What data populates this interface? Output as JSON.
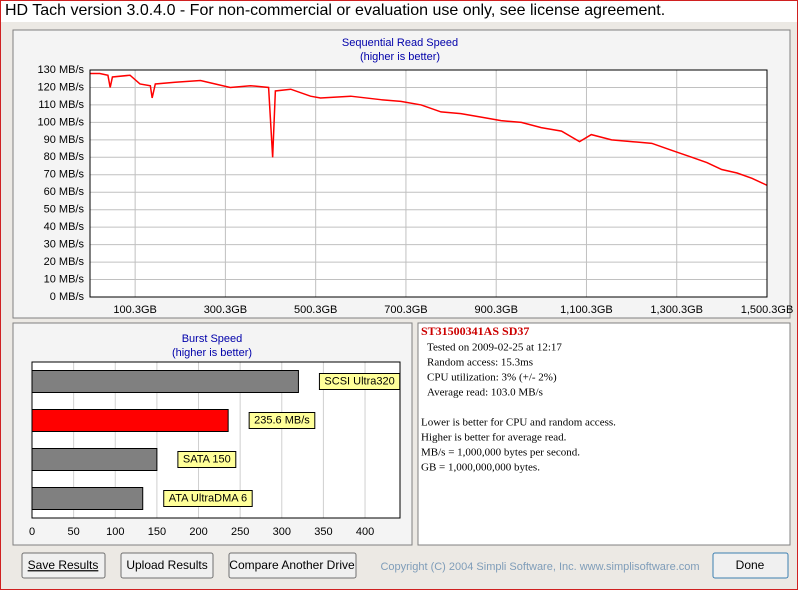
{
  "window_title": "HD Tach version 3.0.4.0  - For non-commercial or evaluation use only, see license agreement.",
  "chart_data": [
    {
      "type": "line",
      "title": "Sequential Read Speed",
      "subtitle": "(higher is better)",
      "color": "#ff0000",
      "x": [
        0.3,
        22,
        40,
        45,
        50,
        89,
        111,
        134,
        138,
        145,
        189,
        245,
        278,
        311,
        356,
        396,
        405,
        411,
        445,
        489,
        511,
        578,
        645,
        689,
        734,
        778,
        822,
        867,
        911,
        956,
        1000,
        1045,
        1085,
        1111,
        1156,
        1200,
        1245,
        1289,
        1334,
        1367,
        1400,
        1434,
        1467,
        1500
      ],
      "values": [
        128,
        128,
        127,
        120,
        126,
        127,
        122,
        121,
        114,
        122,
        123,
        124,
        122,
        120,
        121,
        120,
        80,
        118,
        119,
        115,
        114,
        115,
        113,
        112,
        110,
        106,
        105,
        103,
        101,
        100,
        97,
        95,
        89,
        93,
        90,
        89,
        88,
        84,
        80,
        77,
        73,
        71,
        68,
        64
      ],
      "xlim": [
        0.3,
        1500.3
      ],
      "xticks": [
        {
          "value": 100.3,
          "label": "100.3GB"
        },
        {
          "value": 300.3,
          "label": "300.3GB"
        },
        {
          "value": 500.3,
          "label": "500.3GB"
        },
        {
          "value": 700.3,
          "label": "700.3GB"
        },
        {
          "value": 900.3,
          "label": "900.3GB"
        },
        {
          "value": 1100.3,
          "label": "1,100.3GB"
        },
        {
          "value": 1300.3,
          "label": "1,300.3GB"
        },
        {
          "value": 1500.3,
          "label": "1,500.3GB"
        }
      ],
      "ylim": [
        0,
        130
      ],
      "yticks": [
        {
          "value": 0,
          "label": "0 MB/s"
        },
        {
          "value": 10,
          "label": "10 MB/s"
        },
        {
          "value": 20,
          "label": "20 MB/s"
        },
        {
          "value": 30,
          "label": "30 MB/s"
        },
        {
          "value": 40,
          "label": "40 MB/s"
        },
        {
          "value": 50,
          "label": "50 MB/s"
        },
        {
          "value": 60,
          "label": "60 MB/s"
        },
        {
          "value": 70,
          "label": "70 MB/s"
        },
        {
          "value": 80,
          "label": "80 MB/s"
        },
        {
          "value": 90,
          "label": "90 MB/s"
        },
        {
          "value": 100,
          "label": "100 MB/s"
        },
        {
          "value": 110,
          "label": "110 MB/s"
        },
        {
          "value": 120,
          "label": "120 MB/s"
        },
        {
          "value": 130,
          "label": "130 MB/s"
        }
      ],
      "grid": true
    },
    {
      "type": "bar",
      "orientation": "horizontal",
      "title": "Burst Speed",
      "subtitle": "(higher is better)",
      "categories": [
        "SCSI Ultra320",
        null,
        "SATA 150",
        "ATA UltraDMA 6"
      ],
      "values": [
        320,
        235.6,
        150,
        133
      ],
      "value_labels": [
        null,
        "235.6 MB/s",
        null,
        null
      ],
      "colors": [
        "#808080",
        "#ff0000",
        "#808080",
        "#808080"
      ],
      "xlim": [
        0,
        442
      ],
      "xticks": [
        0,
        50,
        100,
        150,
        200,
        250,
        300,
        350,
        400
      ],
      "grid": true
    }
  ],
  "info": {
    "drive": "ST31500341AS SD37",
    "lines": [
      "Tested on 2009-02-25 at 12:17",
      "Random access: 15.3ms",
      "CPU utilization: 3% (+/- 2%)",
      "Average read: 103.0 MB/s"
    ],
    "notes": [
      "Lower is better for CPU and random access.",
      "Higher is better for average read.",
      "MB/s = 1,000,000 bytes per second.",
      "GB = 1,000,000,000 bytes."
    ]
  },
  "buttons": [
    "Save Results",
    "Upload Results",
    "Compare Another Drive"
  ],
  "copyright": "Copyright (C) 2004 Simpli Software, Inc. www.simplisoftware.com",
  "done": "Done"
}
